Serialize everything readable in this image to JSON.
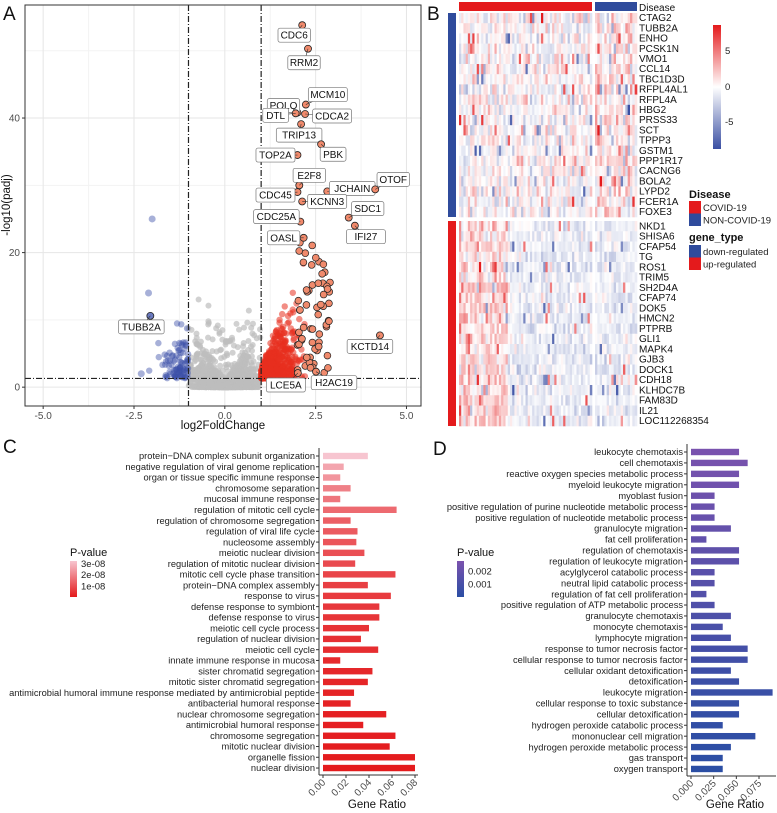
{
  "panels": {
    "a": "A",
    "b": "B",
    "c": "C",
    "d": "D"
  },
  "chart_data": [
    {
      "id": "volcano",
      "type": "scatter",
      "xlabel": "log2FoldChange",
      "ylabel": "-log10(padj)",
      "xlim": [
        -5.5,
        5.4
      ],
      "ylim": [
        -2.8,
        56.8
      ],
      "xticks": [
        -5.0,
        -2.5,
        0.0,
        2.5,
        5.0
      ],
      "xtick_labels": [
        "-5.0",
        "-2.5",
        "0.0",
        "2.5",
        "5.0"
      ],
      "yticks": [
        0,
        20,
        40
      ],
      "ytick_labels": [
        "0",
        "20",
        "40"
      ],
      "grid": true,
      "thresholds": {
        "log2fc": [
          -1,
          1
        ],
        "neg_log10_padj": 1.3
      },
      "colors": {
        "up": "#e8301f",
        "down": "#3b4fa8",
        "ns": "#bdbdbd",
        "labeled": "#f08a6c"
      },
      "labeled_genes": [
        {
          "gene": "CDC6",
          "x": 2.13,
          "y": 53.8
        },
        {
          "gene": "RRM2",
          "x": 2.29,
          "y": 50.3
        },
        {
          "gene": "MCM10",
          "x": 2.23,
          "y": 42.0
        },
        {
          "gene": "POLQ",
          "x": 2.0,
          "y": 40.8
        },
        {
          "gene": "DTL",
          "x": 1.95,
          "y": 40.7
        },
        {
          "gene": "CDCA2",
          "x": 2.21,
          "y": 40.6
        },
        {
          "gene": "TRIP13",
          "x": 2.1,
          "y": 39.1
        },
        {
          "gene": "PBK",
          "x": 2.65,
          "y": 36.1
        },
        {
          "gene": "TOP2A",
          "x": 2.0,
          "y": 34.5
        },
        {
          "gene": "E2F8",
          "x": 2.05,
          "y": 30.0
        },
        {
          "gene": "JCHAIN",
          "x": 2.82,
          "y": 29.1
        },
        {
          "gene": "OTOF",
          "x": 4.14,
          "y": 29.4
        },
        {
          "gene": "CDC45",
          "x": 2.0,
          "y": 29.0
        },
        {
          "gene": "KCNN3",
          "x": 2.13,
          "y": 27.6
        },
        {
          "gene": "SDC1",
          "x": 3.41,
          "y": 25.2
        },
        {
          "gene": "IFI27",
          "x": 3.58,
          "y": 24.0
        },
        {
          "gene": "CDC25A",
          "x": 2.08,
          "y": 24.6
        },
        {
          "gene": "OASL",
          "x": 2.17,
          "y": 22.2
        },
        {
          "gene": "TUBB2A",
          "x": -2.05,
          "y": 10.6
        },
        {
          "gene": "KCTD14",
          "x": 4.27,
          "y": 7.7
        },
        {
          "gene": "LCE5A",
          "x": 2.01,
          "y": 2.1
        },
        {
          "gene": "H2AC19",
          "x": 2.51,
          "y": 2.3
        }
      ]
    },
    {
      "id": "heatmap",
      "type": "heatmap",
      "column_annotation_title": "Disease",
      "groups": [
        {
          "name": "COVID-19",
          "color": "#e41a1c"
        },
        {
          "name": "NON-COVID-19",
          "color": "#2f4b9c"
        }
      ],
      "gene_type_title": "gene_type",
      "gene_types": [
        {
          "name": "down-regulated",
          "color": "#2f4b9c"
        },
        {
          "name": "up-regulated",
          "color": "#e41a1c"
        }
      ],
      "color_scale": {
        "min": -8,
        "max": 8,
        "ticks": [
          "5",
          "0",
          "-5"
        ],
        "low": "#3a4fa3",
        "mid": "#ffffff",
        "high": "#e41a1c"
      },
      "rows_down": [
        "CTAG2",
        "TUBB2A",
        "ENHO",
        "PCSK1N",
        "VMO1",
        "CCL14",
        "TBC1D3D",
        "RFPL4AL1",
        "RFPL4A",
        "HBG2",
        "PRSS33",
        "SCT",
        "TPPP3",
        "GSTM1",
        "PPP1R17",
        "CACNG6",
        "BOLA2",
        "LYPD2",
        "FCER1A",
        "FOXE3"
      ],
      "rows_up": [
        "NKD1",
        "SHISA6",
        "CFAP54",
        "TG",
        "ROS1",
        "TRIM5",
        "SH2D4A",
        "CFAP74",
        "DOK5",
        "HMCN2",
        "PTPRB",
        "GLI1",
        "MAPK4",
        "GJB3",
        "DOCK1",
        "CDH18",
        "KLHDC7B",
        "FAM83D",
        "IL21",
        "LOC112268354"
      ]
    },
    {
      "id": "go-c",
      "type": "bar",
      "orientation": "horizontal",
      "xlabel": "Gene Ratio",
      "xlim": [
        0,
        0.08
      ],
      "xtick_labels": [
        "0.00",
        "0.02",
        "0.04",
        "0.06",
        "0.08"
      ],
      "xticks": [
        0,
        0.02,
        0.04,
        0.06,
        0.08
      ],
      "legend": {
        "title": "P-value",
        "labels": [
          "3e-08",
          "2e-08",
          "1e-08"
        ],
        "values": [
          3e-08,
          2e-08,
          1e-08
        ],
        "low_color": "#e41a1c",
        "high_color": "#f7c5d0",
        "range": [
          0,
          3.2e-08
        ]
      },
      "categories": [
        "protein−DNA complex subunit organization",
        "negative regulation of viral genome replication",
        "organ or tissue specific immune response",
        "chromosome separation",
        "mucosal immune response",
        "regulation of mitotic cell cycle",
        "regulation of chromosome segregation",
        "regulation of viral life cycle",
        "nucleosome assembly",
        "meiotic nuclear division",
        "regulation of mitotic nuclear division",
        "mitotic cell cycle phase transition",
        "protein−DNA complex assembly",
        "response to virus",
        "defense response to symbiont",
        "defense response to virus",
        "meiotic cell cycle process",
        "regulation of nuclear division",
        "meiotic cell cycle",
        "innate immune response in mucosa",
        "sister chromatid segregation",
        "mitotic sister chromatid segregation",
        "antimicrobial humoral immune response mediated by antimicrobial peptide",
        "antibacterial humoral response",
        "nuclear chromosome segregation",
        "antimicrobial humoral response",
        "chromosome segregation",
        "mitotic nuclear division",
        "organelle fission",
        "nuclear division"
      ],
      "values": [
        0.039,
        0.018,
        0.015,
        0.024,
        0.015,
        0.064,
        0.024,
        0.03,
        0.029,
        0.036,
        0.028,
        0.063,
        0.039,
        0.059,
        0.049,
        0.049,
        0.04,
        0.033,
        0.048,
        0.015,
        0.043,
        0.039,
        0.027,
        0.024,
        0.055,
        0.035,
        0.063,
        0.058,
        0.08,
        0.08
      ],
      "pvalues": [
        3.2e-08,
        2.6e-08,
        2.3e-08,
        1.9e-08,
        1.7e-08,
        1.5e-08,
        1.3e-08,
        1.2e-08,
        1.1e-08,
        1e-08,
        9e-09,
        8e-09,
        7e-09,
        6e-09,
        5.5e-09,
        5e-09,
        4.5e-09,
        4e-09,
        3.5e-09,
        3e-09,
        2.5e-09,
        2e-09,
        1.8e-09,
        1.5e-09,
        1.2e-09,
        1e-09,
        8e-10,
        5e-10,
        3e-10,
        1e-10
      ]
    },
    {
      "id": "go-d",
      "type": "bar",
      "orientation": "horizontal",
      "xlabel": "Gene Ratio",
      "xlim": [
        0,
        0.092
      ],
      "xtick_labels": [
        "0.000",
        "0.025",
        "0.050",
        "0.075"
      ],
      "xticks": [
        0,
        0.025,
        0.05,
        0.075
      ],
      "legend": {
        "title": "P-value",
        "labels": [
          "0.002",
          "0.001"
        ],
        "values": [
          0.002,
          0.001
        ],
        "low_color": "#2a4ea4",
        "high_color": "#7b52ae",
        "range": [
          0,
          0.00277
        ]
      },
      "categories": [
        "leukocyte chemotaxis",
        "cell chemotaxis",
        "reactive oxygen species metabolic process",
        "myeloid leukocyte migration",
        "myoblast fusion",
        "positive regulation of purine nucleotide metabolic process",
        "positive regulation of nucleotide metabolic process",
        "granulocyte migration",
        "fat cell proliferation",
        "regulation of chemotaxis",
        "regulation of leukocyte migration",
        "acylglycerol catabolic process",
        "neutral lipid catabolic process",
        "regulation of fat cell proliferation",
        "positive regulation of ATP metabolic process",
        "granulocyte chemotaxis",
        "monocyte chemotaxis",
        "lymphocyte migration",
        "response to tumor necrosis factor",
        "cellular response to tumor necrosis factor",
        "cellular oxidant detoxification",
        "detoxification",
        "leukocyte migration",
        "cellular response to toxic substance",
        "cellular detoxification",
        "hydrogen peroxide catabolic process",
        "mononuclear cell migration",
        "hydrogen peroxide metabolic process",
        "gas transport",
        "oxygen transport"
      ],
      "values": [
        0.053,
        0.0625,
        0.053,
        0.053,
        0.026,
        0.026,
        0.026,
        0.044,
        0.017,
        0.053,
        0.053,
        0.026,
        0.026,
        0.017,
        0.026,
        0.044,
        0.035,
        0.044,
        0.0625,
        0.0625,
        0.044,
        0.053,
        0.09,
        0.053,
        0.053,
        0.035,
        0.071,
        0.044,
        0.035,
        0.035
      ],
      "pvalues": [
        0.0027,
        0.0026,
        0.0025,
        0.0024,
        0.0023,
        0.0022,
        0.0021,
        0.002,
        0.0019,
        0.0018,
        0.0017,
        0.0016,
        0.0015,
        0.0014,
        0.0013,
        0.0012,
        0.0011,
        0.001,
        0.0009,
        0.0008,
        0.0007,
        0.0006,
        0.0005,
        0.0004,
        0.0003,
        0.00025,
        0.0002,
        0.00015,
        0.0001,
        5e-05
      ]
    }
  ]
}
